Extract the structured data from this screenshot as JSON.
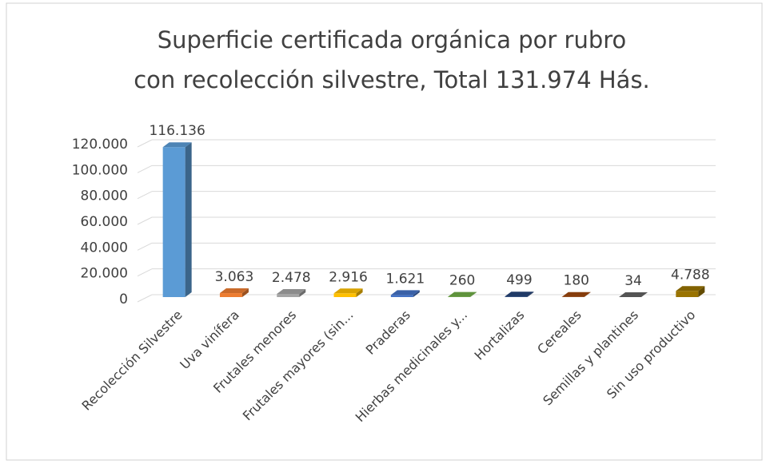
{
  "chart_data": {
    "type": "bar3d",
    "title": [
      "Superficie certificada orgánica por rubro",
      "con recolección silvestre, Total 131.974 Hás."
    ],
    "categories": [
      "Recolección Silvestre",
      "Uva vinífera",
      "Frutales menores",
      "Frutales mayores (sin...",
      "Praderas",
      "Hierbas medicinales y...",
      "Hortalizas",
      "Cereales",
      "Semillas y plantines",
      "Sin uso productivo"
    ],
    "values": [
      116136,
      3063,
      2478,
      2916,
      1621,
      260,
      499,
      180,
      34,
      4788
    ],
    "value_labels": [
      "116.136",
      "3.063",
      "2.478",
      "2.916",
      "1.621",
      "260",
      "499",
      "180",
      "34",
      "4.788"
    ],
    "colors": [
      "#5b9bd5",
      "#ed7d31",
      "#a5a5a5",
      "#ffc000",
      "#4472c4",
      "#70ad47",
      "#264478",
      "#9e480e",
      "#636363",
      "#997300"
    ],
    "ylim": [
      0,
      120000
    ],
    "yticks": [
      0,
      {
        "value": 20000,
        "label": "20.000"
      },
      {
        "value": 40000,
        "label": "40.000"
      },
      {
        "value": 60000,
        "label": "60.000"
      },
      {
        "value": 80000,
        "label": "80.000"
      },
      {
        "value": 100000,
        "label": "100.000"
      },
      {
        "value": 120000,
        "label": "120.000"
      }
    ],
    "grid": true
  }
}
